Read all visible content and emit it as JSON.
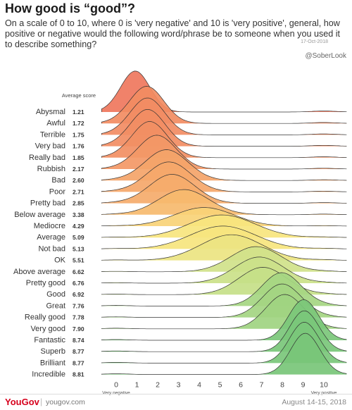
{
  "header": {
    "title": "How good is “good”?",
    "subtitle": "On a scale of 0 to 10, where 0 is 'very negative' and 10 is 'very positive', general, how positive or negative would the following word/phrase be to someone when you used it to describe something?",
    "date_stamp": "17-Oct-2018",
    "credit": "@SoberLook"
  },
  "footer": {
    "brand": "YouGov",
    "site": "yougov.com",
    "survey_date": "August 14-15, 2018"
  },
  "chart_data": {
    "type": "ridgeline",
    "title": "How good is “good”?",
    "avg_header": "Average score",
    "x_ticks": [
      0,
      1,
      2,
      3,
      4,
      5,
      6,
      7,
      8,
      9,
      10
    ],
    "xlim": [
      -0.7,
      11.1
    ],
    "x_end_labels": {
      "left": "Very negative",
      "right": "Very positive"
    },
    "color_scale": [
      "#e8434e",
      "#f28a62",
      "#f6b96e",
      "#f9e57d",
      "#cfe28a",
      "#8fcf7e",
      "#3fb06a"
    ],
    "rows": [
      {
        "label": "Abysmal",
        "average": "1.21"
      },
      {
        "label": "Awful",
        "average": "1.72"
      },
      {
        "label": "Terrible",
        "average": "1.75"
      },
      {
        "label": "Very bad",
        "average": "1.76"
      },
      {
        "label": "Really bad",
        "average": "1.85"
      },
      {
        "label": "Rubbish",
        "average": "2.17"
      },
      {
        "label": "Bad",
        "average": "2.60"
      },
      {
        "label": "Poor",
        "average": "2.71"
      },
      {
        "label": "Pretty bad",
        "average": "2.85"
      },
      {
        "label": "Below average",
        "average": "3.38"
      },
      {
        "label": "Mediocre",
        "average": "4.29"
      },
      {
        "label": "Average",
        "average": "5.09"
      },
      {
        "label": "Not bad",
        "average": "5.13"
      },
      {
        "label": "OK",
        "average": "5.51"
      },
      {
        "label": "Above average",
        "average": "6.62"
      },
      {
        "label": "Pretty good",
        "average": "6.76"
      },
      {
        "label": "Good",
        "average": "6.92"
      },
      {
        "label": "Great",
        "average": "7.76"
      },
      {
        "label": "Really good",
        "average": "7.78"
      },
      {
        "label": "Very good",
        "average": "7.90"
      },
      {
        "label": "Fantastic",
        "average": "8.74"
      },
      {
        "label": "Superb",
        "average": "8.77"
      },
      {
        "label": "Brilliant",
        "average": "8.77"
      },
      {
        "label": "Incredible",
        "average": "8.81"
      }
    ]
  }
}
